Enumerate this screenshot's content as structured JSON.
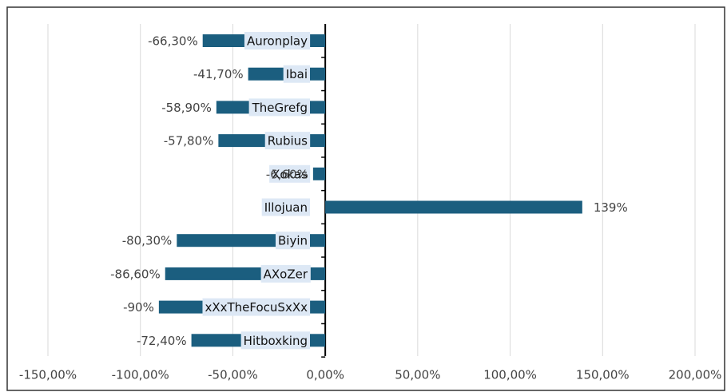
{
  "chart_data": {
    "type": "bar",
    "orientation": "horizontal",
    "categories": [
      "Auronplay",
      "Ibai",
      "TheGrefg",
      "Rubius",
      "Xokas",
      "Illojuan",
      "Biyin",
      "AXoZer",
      "xXxTheFocuSxXx",
      "Hitboxking"
    ],
    "values": [
      -66.3,
      -41.7,
      -58.9,
      -57.8,
      -6.6,
      139,
      -80.3,
      -86.6,
      -90,
      -72.4
    ],
    "value_labels": [
      "-66,30%",
      "-41,70%",
      "-58,90%",
      "-57,80%",
      "-6,60%",
      "139%",
      "-80,30%",
      "-86,60%",
      "-90%",
      "-72,40%"
    ],
    "color": "#1b5e7f",
    "xlim": [
      -150,
      200
    ],
    "xticks": [
      {
        "value": -150,
        "label": "-150,00%"
      },
      {
        "value": -100,
        "label": "-100,00%"
      },
      {
        "value": -50,
        "label": "-50,00%"
      },
      {
        "value": 0,
        "label": "0,00%"
      },
      {
        "value": 50,
        "label": "50,00%"
      },
      {
        "value": 100,
        "label": "100,00%"
      },
      {
        "value": 150,
        "label": "150,00%"
      },
      {
        "value": 200,
        "label": "200,00%"
      }
    ],
    "grid": true
  }
}
